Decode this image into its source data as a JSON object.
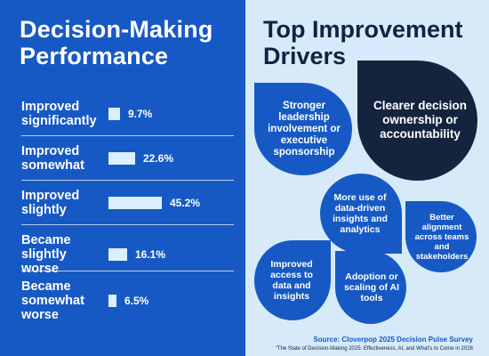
{
  "left_panel": {
    "title": "Decision-Making Performance"
  },
  "chart_data": {
    "type": "bar",
    "orientation": "horizontal",
    "title": "Decision-Making Performance",
    "categories": [
      "Improved significantly",
      "Improved somewhat",
      "Improved slightly",
      "Became slightly worse",
      "Became somewhat worse"
    ],
    "values": [
      9.7,
      22.6,
      45.2,
      16.1,
      6.5
    ],
    "value_labels": [
      "9.7%",
      "22.6%",
      "45.2%",
      "16.1%",
      "6.5%"
    ],
    "unit": "%",
    "grid": false,
    "colors": {
      "background": "#1759c4",
      "bar": "#dcefff",
      "text": "#ffffff"
    }
  },
  "right_panel": {
    "title": "Top Improvement Drivers",
    "drivers": [
      "Stronger leadership involvement or executive sponsorship",
      "Clearer decision ownership or accountability",
      "More use of data-driven insights and analytics",
      "Better alignment across teams and stakeholders",
      "Improved access to data and insights",
      "Adoption or scaling of AI tools"
    ],
    "colors": {
      "background": "#d7eaf9",
      "bubble": "#1759c4",
      "bubble_highlight": "#14243e"
    }
  },
  "footer": {
    "source": "Source: Cloverpop 2025 Decision Pulse Survey",
    "note": "\"The State of Decision-Making 2025: Effectiveness, AI, and What's to Come in 2026"
  }
}
